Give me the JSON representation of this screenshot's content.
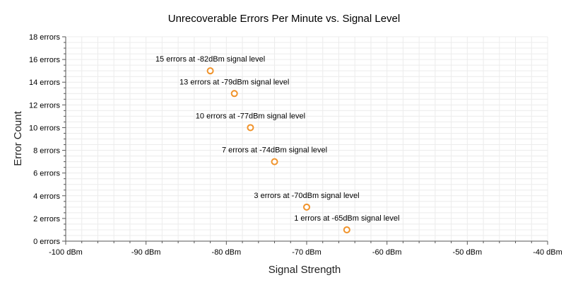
{
  "chart_data": {
    "type": "scatter",
    "title": "Unrecoverable Errors Per Minute vs. Signal Level",
    "xlabel": "Signal Strength",
    "ylabel": "Error Count",
    "xlim": [
      -100,
      -40
    ],
    "ylim": [
      0,
      18
    ],
    "x_ticks": [
      -100,
      -90,
      -80,
      -70,
      -60,
      -50,
      -40
    ],
    "y_ticks": [
      0,
      2,
      4,
      6,
      8,
      10,
      12,
      14,
      16,
      18
    ],
    "x_tick_labels": [
      "-100 dBm",
      "-90 dBm",
      "-80 dBm",
      "-70 dBm",
      "-60 dBm",
      "-50 dBm",
      "-40 dBm"
    ],
    "y_tick_labels": [
      "0 errors",
      "2 errors",
      "4 errors",
      "6 errors",
      "8 errors",
      "10 errors",
      "12 errors",
      "14 errors",
      "16 errors",
      "18 errors"
    ],
    "grid": true,
    "marker_color": "#f0932b",
    "grid_color": "#ececec",
    "points": [
      {
        "x": -82,
        "y": 15,
        "label": "15 errors at -82dBm signal level"
      },
      {
        "x": -79,
        "y": 13,
        "label": "13 errors at -79dBm signal level"
      },
      {
        "x": -77,
        "y": 10,
        "label": "10 errors at -77dBm signal level"
      },
      {
        "x": -74,
        "y": 7,
        "label": "7 errors at -74dBm signal level"
      },
      {
        "x": -70,
        "y": 3,
        "label": "3 errors at -70dBm signal level"
      },
      {
        "x": -65,
        "y": 1,
        "label": "1 errors at -65dBm signal level"
      }
    ]
  }
}
